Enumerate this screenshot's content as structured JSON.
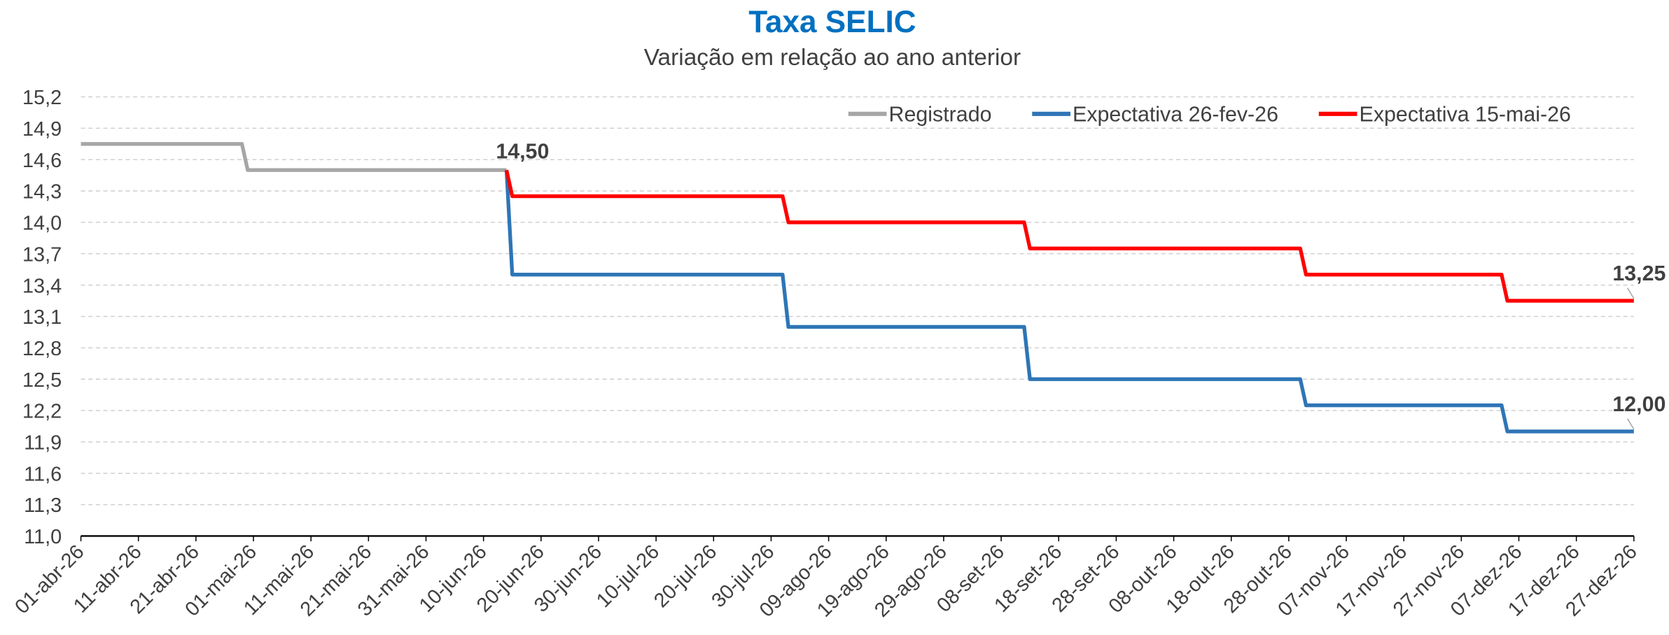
{
  "chart_data": {
    "type": "line",
    "title": "Taxa SELIC",
    "subtitle": "Variação em relação ao ano anterior",
    "xlim": [
      "2026-04-01",
      "2026-12-27"
    ],
    "xticks": [
      {
        "value": "2026-04-01",
        "label": "01-abr-26"
      },
      {
        "value": "2026-04-11",
        "label": "11-abr-26"
      },
      {
        "value": "2026-04-21",
        "label": "21-abr-26"
      },
      {
        "value": "2026-05-01",
        "label": "01-mai-26"
      },
      {
        "value": "2026-05-11",
        "label": "11-mai-26"
      },
      {
        "value": "2026-05-21",
        "label": "21-mai-26"
      },
      {
        "value": "2026-05-31",
        "label": "31-mai-26"
      },
      {
        "value": "2026-06-10",
        "label": "10-jun-26"
      },
      {
        "value": "2026-06-20",
        "label": "20-jun-26"
      },
      {
        "value": "2026-06-30",
        "label": "30-jun-26"
      },
      {
        "value": "2026-07-10",
        "label": "10-jul-26"
      },
      {
        "value": "2026-07-20",
        "label": "20-jul-26"
      },
      {
        "value": "2026-07-30",
        "label": "30-jul-26"
      },
      {
        "value": "2026-08-09",
        "label": "09-ago-26"
      },
      {
        "value": "2026-08-19",
        "label": "19-ago-26"
      },
      {
        "value": "2026-08-29",
        "label": "29-ago-26"
      },
      {
        "value": "2026-09-08",
        "label": "08-set-26"
      },
      {
        "value": "2026-09-18",
        "label": "18-set-26"
      },
      {
        "value": "2026-09-28",
        "label": "28-set-26"
      },
      {
        "value": "2026-10-08",
        "label": "08-out-26"
      },
      {
        "value": "2026-10-18",
        "label": "18-out-26"
      },
      {
        "value": "2026-10-28",
        "label": "28-out-26"
      },
      {
        "value": "2026-11-07",
        "label": "07-nov-26"
      },
      {
        "value": "2026-11-17",
        "label": "17-nov-26"
      },
      {
        "value": "2026-11-27",
        "label": "27-nov-26"
      },
      {
        "value": "2026-12-07",
        "label": "07-dez-26"
      },
      {
        "value": "2026-12-17",
        "label": "17-dez-26"
      },
      {
        "value": "2026-12-27",
        "label": "27-dez-26"
      }
    ],
    "ylim": [
      11,
      15.2
    ],
    "yticks": [
      {
        "value": 11,
        "label": "11,0"
      },
      {
        "value": 11.3,
        "label": "11,3"
      },
      {
        "value": 11.6,
        "label": "11,6"
      },
      {
        "value": 11.9,
        "label": "11,9"
      },
      {
        "value": 12.2,
        "label": "12,2"
      },
      {
        "value": 12.5,
        "label": "12,5"
      },
      {
        "value": 12.8,
        "label": "12,8"
      },
      {
        "value": 13.1,
        "label": "13,1"
      },
      {
        "value": 13.4,
        "label": "13,4"
      },
      {
        "value": 13.7,
        "label": "13,7"
      },
      {
        "value": 14,
        "label": "14,0"
      },
      {
        "value": 14.3,
        "label": "14,3"
      },
      {
        "value": 14.6,
        "label": "14,6"
      },
      {
        "value": 14.9,
        "label": "14,9"
      },
      {
        "value": 15.2,
        "label": "15,2"
      }
    ],
    "grid": true,
    "legend": "top-right",
    "series": [
      {
        "name": "Registrado",
        "color": "#a6a6a6",
        "x": [
          "2026-04-01",
          "2026-04-29",
          "2026-04-30",
          "2026-06-14"
        ],
        "values": [
          14.75,
          14.75,
          14.5,
          14.5
        ]
      },
      {
        "name": "Expectativa 26-fev-26",
        "color": "#2e75b6",
        "x": [
          "2026-06-14",
          "2026-06-15",
          "2026-08-01",
          "2026-08-02",
          "2026-09-12",
          "2026-09-13",
          "2026-10-30",
          "2026-10-31",
          "2026-12-04",
          "2026-12-05",
          "2026-12-27"
        ],
        "values": [
          14.5,
          13.5,
          13.5,
          13,
          13,
          12.5,
          12.5,
          12.25,
          12.25,
          12,
          12
        ]
      },
      {
        "name": "Expectativa 15-mai-26",
        "color": "#ff0000",
        "x": [
          "2026-06-14",
          "2026-06-15",
          "2026-08-01",
          "2026-08-02",
          "2026-09-12",
          "2026-09-13",
          "2026-10-30",
          "2026-10-31",
          "2026-12-04",
          "2026-12-05",
          "2026-12-27"
        ],
        "values": [
          14.5,
          14.25,
          14.25,
          14,
          14,
          13.75,
          13.75,
          13.5,
          13.5,
          13.25,
          13.25
        ]
      }
    ],
    "annotations": [
      {
        "text": "14,50",
        "x": "2026-06-14",
        "y": 14.5
      },
      {
        "text": "13,25",
        "x": "2026-12-27",
        "y": 13.25
      },
      {
        "text": "12,00",
        "x": "2026-12-27",
        "y": 12
      }
    ]
  }
}
